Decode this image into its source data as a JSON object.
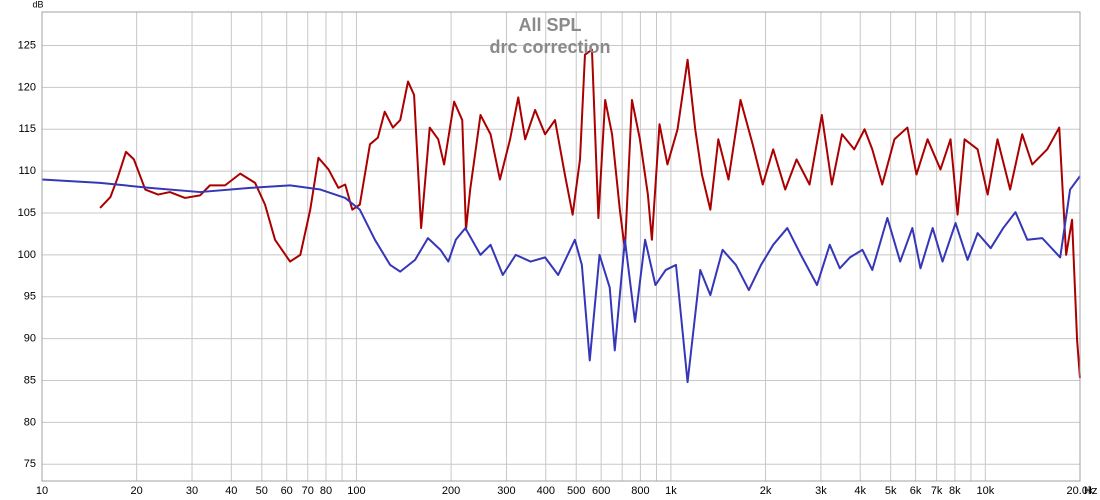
{
  "chart_data": {
    "type": "line",
    "title": "All SPL",
    "subtitle": "drc correction",
    "x_label": "Hz",
    "y_label": "dB",
    "xscale": "log",
    "grid": true,
    "xlim": [
      10,
      20000
    ],
    "ylim": [
      73,
      129
    ],
    "xticks": [
      10,
      20,
      30,
      40,
      50,
      60,
      70,
      80,
      100,
      200,
      300,
      400,
      500,
      600,
      800,
      {
        "value": 1000,
        "label": "1k"
      },
      {
        "value": 2000,
        "label": "2k"
      },
      {
        "value": 3000,
        "label": "3k"
      },
      {
        "value": 4000,
        "label": "4k"
      },
      {
        "value": 5000,
        "label": "5k"
      },
      {
        "value": 6000,
        "label": "6k"
      },
      {
        "value": 7000,
        "label": "7k"
      },
      {
        "value": 8000,
        "label": "8k"
      },
      {
        "value": 10000,
        "label": "10k"
      },
      {
        "value": 20000,
        "label": "20.0k"
      }
    ],
    "xminorticks": [
      90,
      700,
      900,
      9000
    ],
    "yticks": [
      75,
      80,
      85,
      90,
      95,
      100,
      105,
      110,
      115,
      120,
      125
    ],
    "series": [
      {
        "color": "#aa0000",
        "x": [
          15.3,
          16.5,
          17.4,
          18.5,
          19.6,
          21.3,
          23.4,
          25.5,
          28.5,
          31.8,
          34.2,
          38.2,
          42.7,
          47.6,
          51.2,
          55.1,
          61.5,
          66.3,
          71.3,
          75.7,
          81.5,
          87.6,
          92.1,
          97,
          102.5,
          110.4,
          117,
          123,
          130.6,
          137.8,
          145.9,
          152.5,
          160.6,
          171,
          182,
          190,
          204.5,
          217,
          223,
          230,
          248,
          267,
          286,
          308,
          327,
          344,
          370,
          398,
          428,
          460,
          487,
          514,
          533,
          561,
          588,
          618,
          650,
          688,
          714,
          752,
          797,
          845,
          870,
          920,
          975,
          1050,
          1130,
          1195,
          1255,
          1335,
          1415,
          1525,
          1665,
          1820,
          1960,
          2115,
          2310,
          2510,
          2760,
          3020,
          3250,
          3500,
          3830,
          4130,
          4370,
          4700,
          5140,
          5650,
          6040,
          6550,
          7200,
          7750,
          8160,
          8590,
          9450,
          10170,
          10930,
          11990,
          13100,
          14100,
          15730,
          17180,
          18070,
          18870,
          19580,
          20000
        ],
        "values": [
          105.6,
          106.9,
          109.2,
          112.3,
          111.4,
          107.8,
          107.2,
          107.5,
          106.8,
          107.1,
          108.3,
          108.3,
          109.7,
          108.6,
          106.0,
          101.8,
          99.2,
          100.0,
          105.4,
          111.6,
          110.2,
          108.0,
          108.4,
          105.4,
          106.0,
          113.2,
          114.0,
          117.1,
          115.2,
          116.1,
          120.7,
          119.1,
          103.2,
          115.2,
          113.8,
          110.8,
          118.3,
          116.1,
          103.0,
          107.8,
          116.7,
          114.4,
          109.0,
          113.8,
          118.8,
          113.8,
          117.3,
          114.4,
          116.1,
          109.6,
          104.8,
          111.4,
          123.9,
          124.5,
          104.4,
          118.5,
          114.4,
          105.4,
          100.6,
          118.5,
          113.8,
          107.2,
          101.8,
          115.6,
          110.8,
          115.0,
          123.3,
          115.0,
          109.6,
          105.4,
          113.8,
          109.0,
          118.5,
          113.2,
          108.4,
          112.6,
          107.8,
          111.4,
          108.4,
          116.7,
          108.4,
          114.4,
          112.6,
          115.0,
          112.6,
          108.4,
          113.8,
          115.2,
          109.6,
          113.8,
          110.2,
          113.8,
          104.8,
          113.8,
          112.6,
          107.2,
          113.8,
          107.8,
          114.4,
          110.8,
          112.6,
          115.2,
          100.0,
          104.2,
          89.8,
          85.3
        ]
      },
      {
        "color": "#3636b8",
        "x": [
          10,
          15.3,
          22,
          31.8,
          45.9,
          61.5,
          76.8,
          92.1,
          102.5,
          114.5,
          128,
          137.8,
          153.6,
          168.8,
          185,
          196,
          207,
          222,
          248,
          267,
          292,
          321,
          358,
          398,
          438,
          495,
          521,
          552,
          593,
          639,
          663,
          714,
          769,
          828,
          893,
          963,
          1038,
          1130,
          1240,
          1335,
          1460,
          1610,
          1770,
          1935,
          2115,
          2345,
          2590,
          2915,
          3200,
          3445,
          3710,
          4065,
          4370,
          4880,
          5360,
          5860,
          6220,
          6800,
          7310,
          8040,
          8780,
          9450,
          10400,
          11400,
          12470,
          13600,
          15170,
          17300,
          18600,
          20000
        ],
        "values": [
          109.0,
          108.6,
          108.0,
          107.5,
          108.0,
          108.3,
          107.8,
          106.8,
          105.4,
          101.8,
          98.8,
          98.0,
          99.4,
          102.0,
          100.6,
          99.2,
          101.8,
          103.2,
          100.0,
          101.2,
          97.6,
          100.0,
          99.2,
          99.7,
          97.6,
          101.8,
          98.8,
          87.4,
          100.0,
          96.1,
          88.6,
          101.8,
          92.0,
          101.8,
          96.4,
          98.2,
          98.8,
          84.8,
          98.2,
          95.2,
          100.6,
          98.8,
          95.8,
          98.8,
          101.2,
          103.2,
          100.0,
          96.4,
          101.2,
          98.4,
          99.7,
          100.6,
          98.2,
          104.4,
          99.2,
          103.2,
          98.4,
          103.2,
          99.2,
          103.8,
          99.4,
          102.6,
          100.8,
          103.2,
          105.1,
          101.8,
          102.0,
          99.7,
          107.8,
          109.4
        ]
      }
    ]
  }
}
